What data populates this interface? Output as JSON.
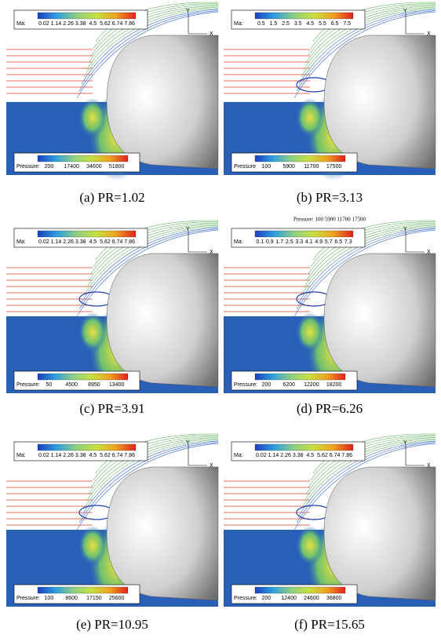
{
  "axes": {
    "x": "X",
    "y": "Y"
  },
  "panels": [
    {
      "caption": "(a) PR=1.02",
      "ma_label": "Ma:",
      "ma_ticks": [
        "0.02",
        "1.14",
        "2.26",
        "3.38",
        "4.5",
        "5.62",
        "6.74",
        "7.86"
      ],
      "pressure_label": "Pressure:",
      "pressure_ticks": [
        "200",
        "17400",
        "34600",
        "51800"
      ]
    },
    {
      "caption": "(b) PR=3.13",
      "ma_label": "Ma:",
      "ma_ticks": [
        "0.5",
        "1.5",
        "2.5",
        "3.5",
        "4.5",
        "5.5",
        "6.5",
        "7.5"
      ],
      "pressure_label": "Pressure",
      "pressure_ticks": [
        "100",
        "5900",
        "11700",
        "17500"
      ]
    },
    {
      "caption": "(c) PR=3.91",
      "ma_label": "Ma:",
      "ma_ticks": [
        "0.02",
        "1.14",
        "2.26",
        "3.38",
        "4.5",
        "5.62",
        "6.74",
        "7.86"
      ],
      "pressure_label": "Pressure:",
      "pressure_ticks": [
        "50",
        "4500",
        "8950",
        "13400"
      ]
    },
    {
      "caption": "(d) PR=6.26",
      "ma_label": "Ma:",
      "ma_ticks": [
        "0.1",
        "0.9",
        "1.7",
        "2.5",
        "3.3",
        "4.1",
        "4.9",
        "5.7",
        "6.5",
        "7.3"
      ],
      "pressure_label": "Pressure:",
      "pressure_ticks": [
        "200",
        "6200",
        "12200",
        "18200"
      ]
    },
    {
      "caption": "(e) PR=10.95",
      "ma_label": "Ma:",
      "ma_ticks": [
        "0.02",
        "1.14",
        "2.26",
        "3.38",
        "4.5",
        "5.62",
        "6.74",
        "7.86"
      ],
      "pressure_label": "Pressure:",
      "pressure_ticks": [
        "100",
        "8600",
        "17150",
        "25600"
      ]
    },
    {
      "caption": "(f) PR=15.65",
      "ma_label": "Ma:",
      "ma_ticks": [
        "0.02",
        "1.14",
        "2.26",
        "3.38",
        "4.5",
        "5.62",
        "6.74",
        "7.86"
      ],
      "pressure_label": "Pressure:",
      "pressure_ticks": [
        "200",
        "12400",
        "24600",
        "36800"
      ]
    }
  ],
  "stray_label": "Pressure: 100  5900  11700  17500"
}
